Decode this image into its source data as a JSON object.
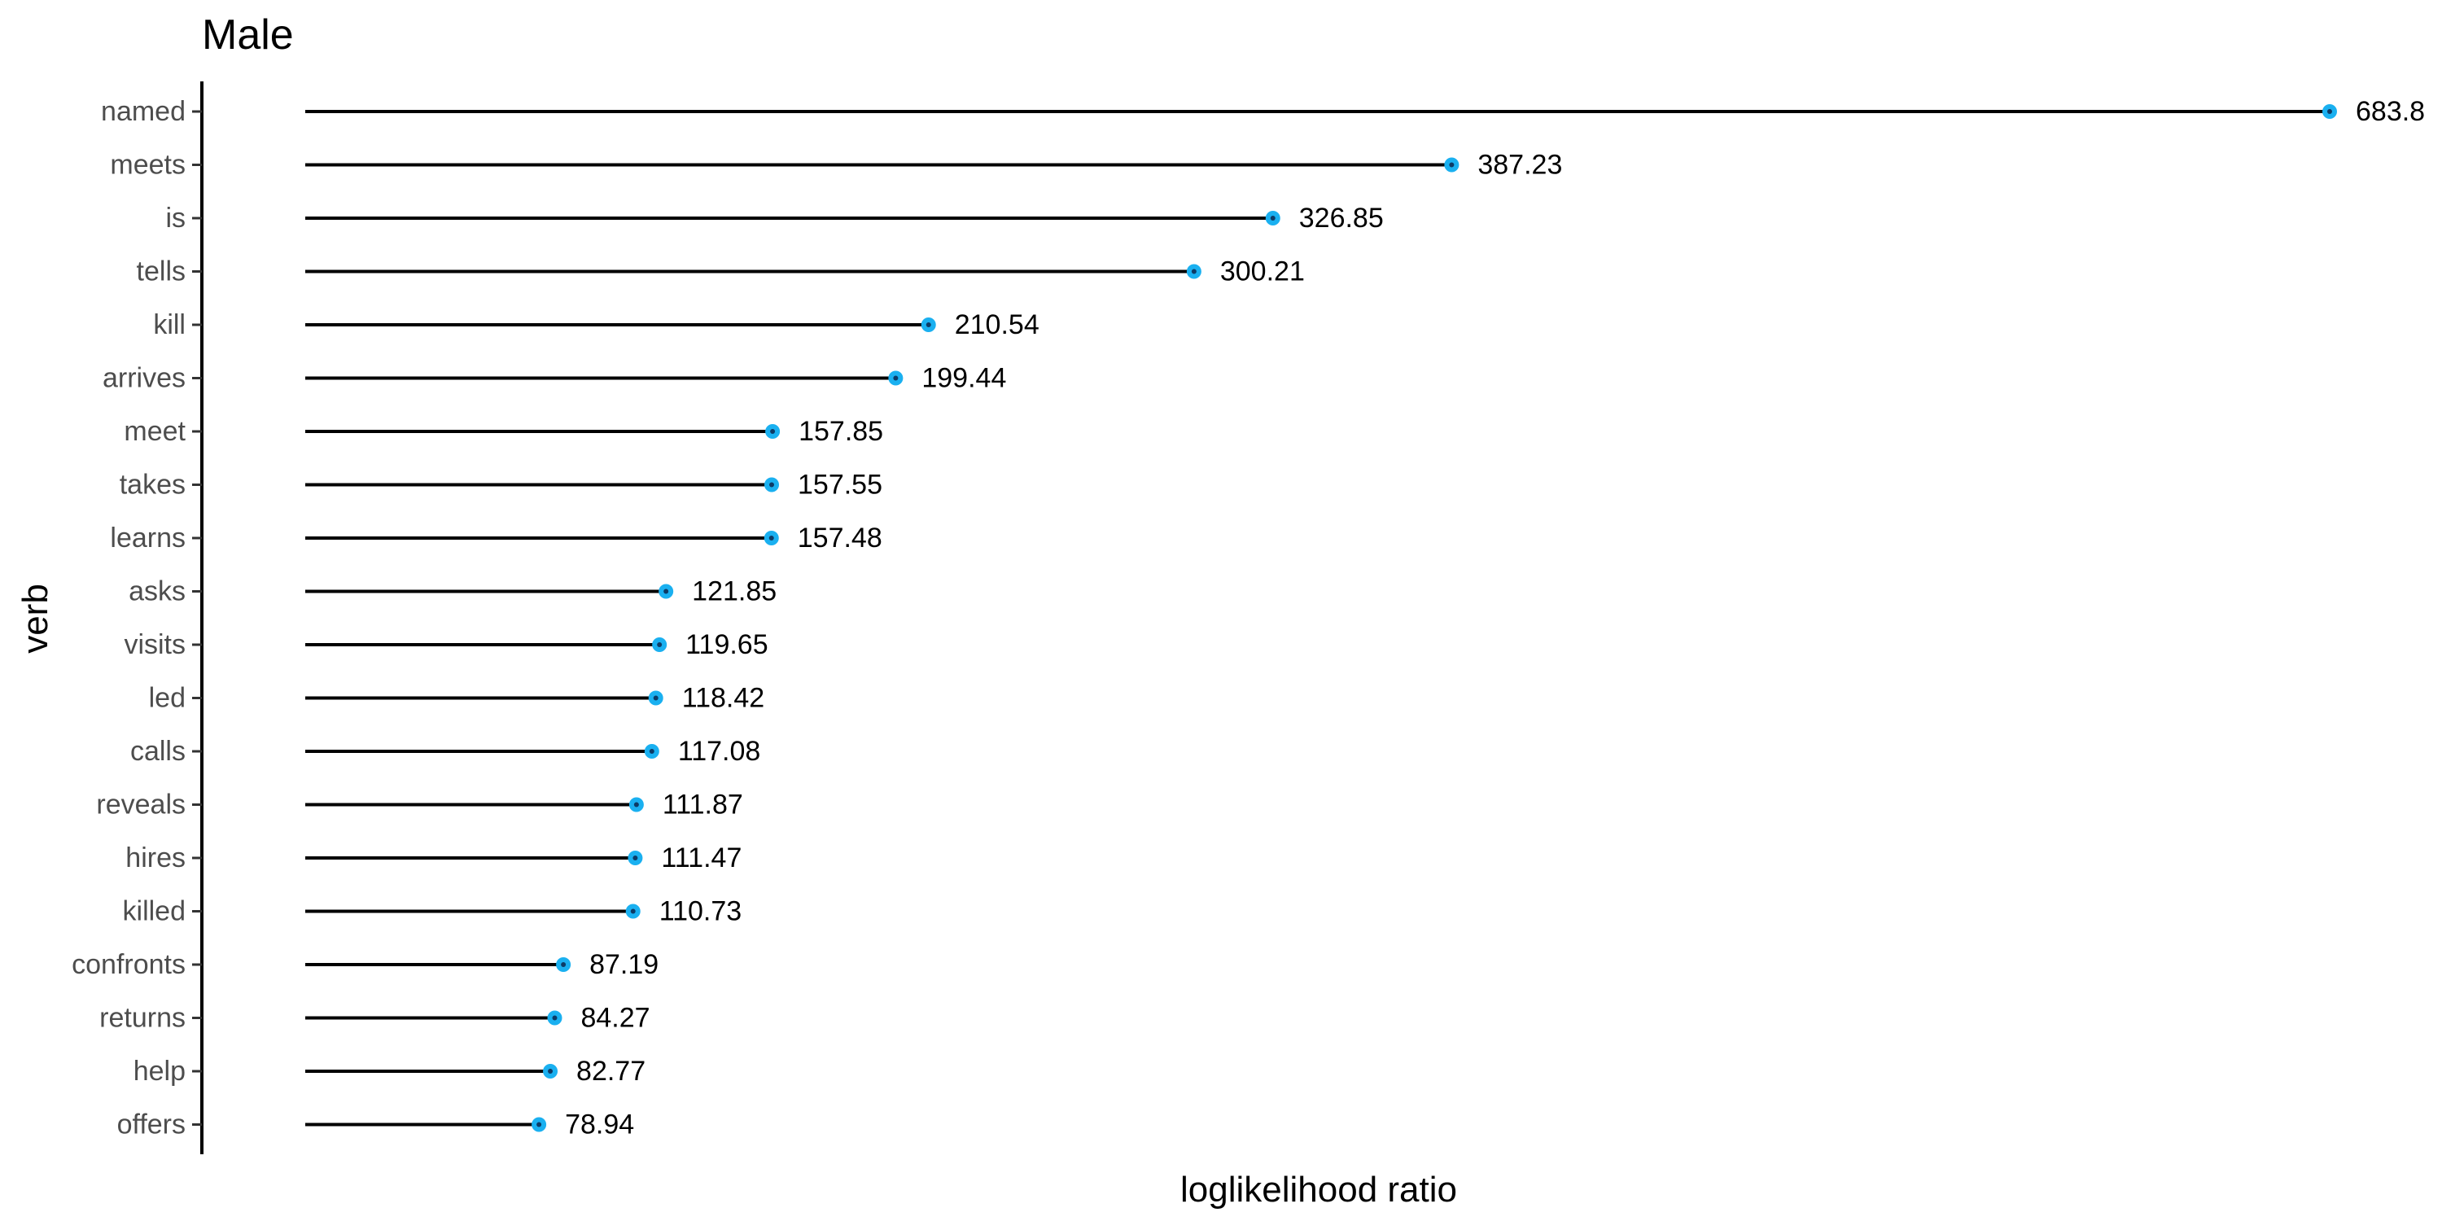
{
  "chart_data": {
    "type": "lollipop",
    "title": "Male",
    "xlabel": "loglikelihood ratio",
    "ylabel": "verb",
    "xlim": [
      0,
      683.8
    ],
    "grid": false,
    "categories": [
      "named",
      "meets",
      "is",
      "tells",
      "kill",
      "arrives",
      "meet",
      "takes",
      "learns",
      "asks",
      "visits",
      "led",
      "calls",
      "reveals",
      "hires",
      "killed",
      "confronts",
      "returns",
      "help",
      "offers"
    ],
    "values": [
      683.8,
      387.23,
      326.85,
      300.21,
      210.54,
      199.44,
      157.85,
      157.55,
      157.48,
      121.85,
      119.65,
      118.42,
      117.08,
      111.87,
      111.47,
      110.73,
      87.19,
      84.27,
      82.77,
      78.94
    ],
    "value_labels": [
      "683.8",
      "387.23",
      "326.85",
      "300.21",
      "210.54",
      "199.44",
      "157.85",
      "157.55",
      "157.48",
      "121.85",
      "119.65",
      "118.42",
      "117.08",
      "111.87",
      "111.47",
      "110.73",
      "87.19",
      "84.27",
      "82.77",
      "78.94"
    ],
    "colors": {
      "point": "#1ab0f0",
      "stem": "#000000",
      "tick_label": "#4d4d4d",
      "text": "#000000"
    }
  }
}
